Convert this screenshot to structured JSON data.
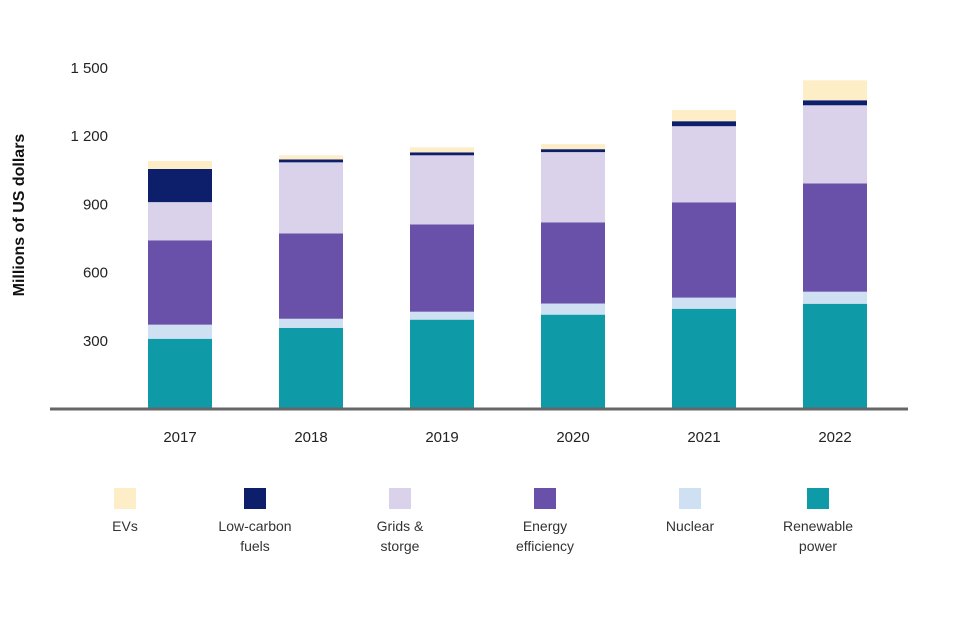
{
  "chart_data": {
    "type": "bar",
    "stacked": true,
    "title": "",
    "xlabel": "",
    "ylabel": "Millions of US dollars",
    "ylim": [
      0,
      1500
    ],
    "yticks": [
      300,
      600,
      900,
      1200,
      1500
    ],
    "ytick_labels": [
      "300",
      "600",
      "900",
      "1 200",
      "1 500"
    ],
    "grid": false,
    "legend_position": "bottom",
    "categories": [
      "2017",
      "2018",
      "2019",
      "2020",
      "2021",
      "2022"
    ],
    "series": [
      {
        "name": "Renewable power",
        "legend_lines": [
          "Renewable",
          "power"
        ],
        "color": "#0e9aa7",
        "values": [
          309,
          357,
          393,
          415,
          441,
          463
        ]
      },
      {
        "name": "Nuclear",
        "legend_lines": [
          "Nuclear"
        ],
        "color": "#cfe0f2",
        "values": [
          62,
          40,
          35,
          49,
          49,
          53
        ]
      },
      {
        "name": "Energy efficiency",
        "legend_lines": [
          "Energy",
          "efficiency"
        ],
        "color": "#6950a8",
        "values": [
          371,
          375,
          384,
          357,
          419,
          476
        ]
      },
      {
        "name": "Grids & storge",
        "legend_lines": [
          "Grids &",
          "storge"
        ],
        "color": "#d9d2ea",
        "values": [
          168,
          313,
          304,
          309,
          335,
          344
        ]
      },
      {
        "name": "Low-carbon fuels",
        "legend_lines": [
          "Low-carbon",
          "fuels"
        ],
        "color": "#0d1f6b",
        "values": [
          146,
          13,
          13,
          13,
          22,
          22
        ]
      },
      {
        "name": "EVs",
        "legend_lines": [
          "EVs"
        ],
        "color": "#fdeec8",
        "values": [
          35,
          18,
          22,
          22,
          49,
          88
        ]
      }
    ],
    "legend_order": [
      "EVs",
      "Low-carbon fuels",
      "Grids & storge",
      "Energy efficiency",
      "Nuclear",
      "Renewable power"
    ],
    "axis_color": "#666666"
  }
}
